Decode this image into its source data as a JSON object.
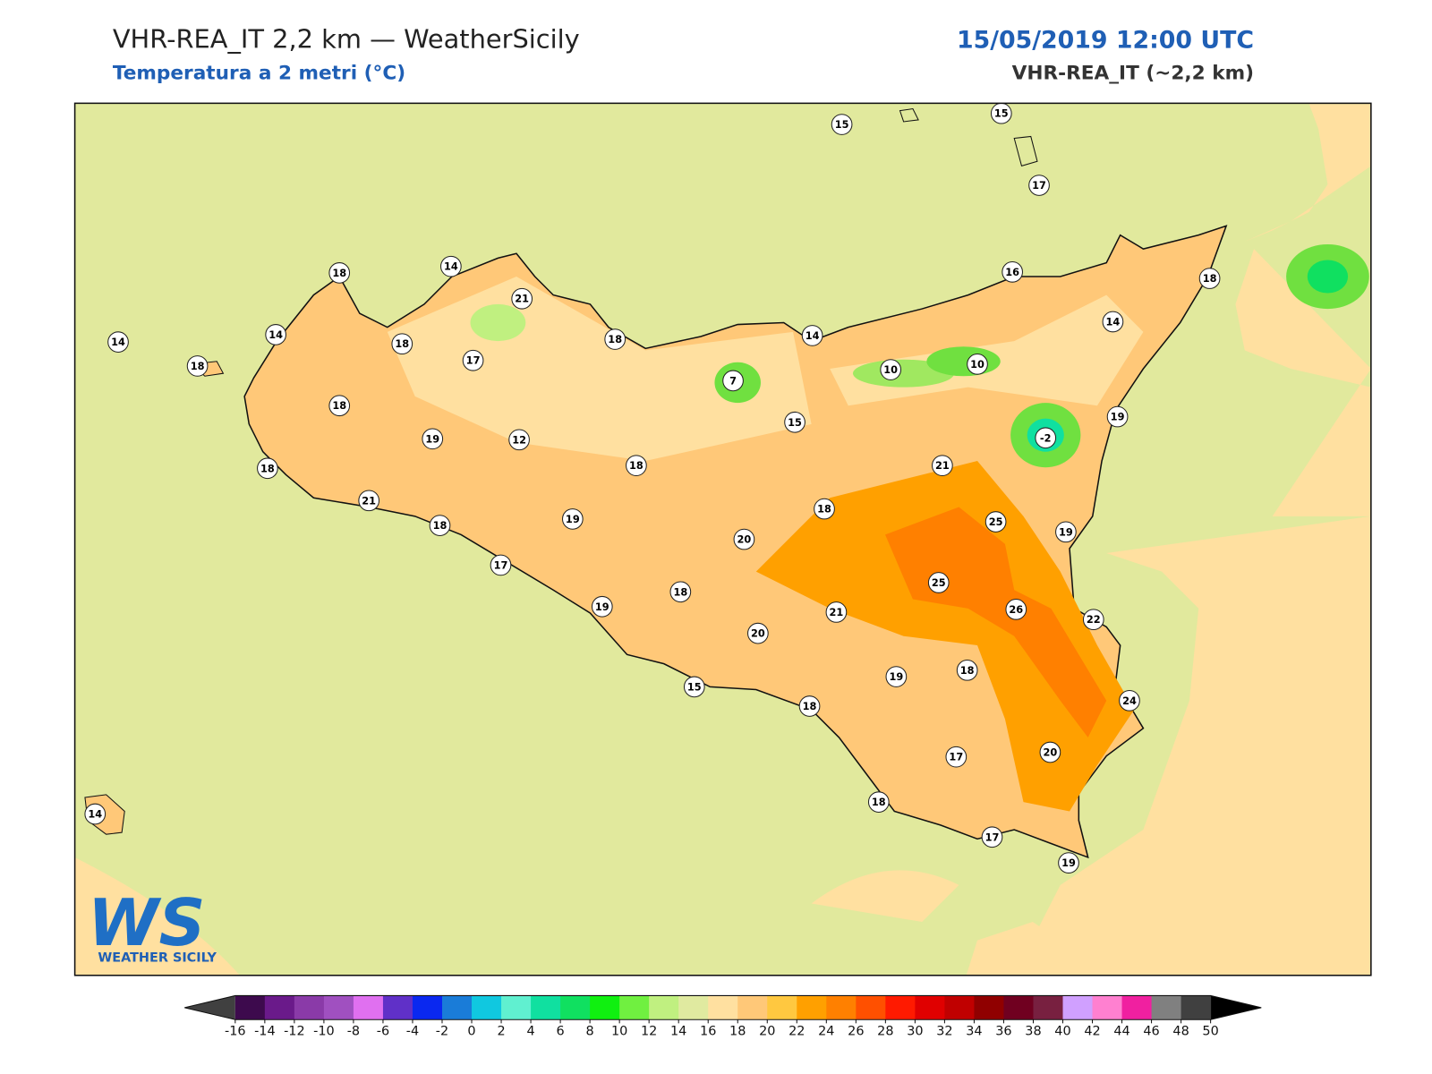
{
  "header": {
    "title": "VHR-REA_IT 2,2 km — WeatherSicily",
    "subtitle": "Temperatura a 2 metri (°C)",
    "datetime": "15/05/2019 12:00 UTC",
    "model": "VHR-REA_IT (~2,2 km)"
  },
  "stations": [
    15,
    15,
    17,
    18,
    14,
    21,
    18,
    16,
    14,
    14,
    14,
    18,
    18,
    17,
    18,
    14,
    7,
    10,
    10,
    18,
    15,
    19,
    -2,
    19,
    12,
    18,
    18,
    21,
    21,
    18,
    19,
    25,
    18,
    20,
    19,
    17,
    25,
    18,
    19,
    26,
    21,
    22,
    20,
    19,
    18,
    15,
    24,
    18,
    20,
    17,
    18,
    14,
    17,
    19
  ],
  "colorbar": {
    "ticks": [
      -16,
      -14,
      -12,
      -10,
      -8,
      -6,
      -4,
      -2,
      0,
      2,
      4,
      6,
      8,
      10,
      12,
      14,
      16,
      18,
      20,
      22,
      24,
      26,
      28,
      30,
      32,
      34,
      36,
      38,
      40,
      42,
      44,
      46,
      48,
      50
    ],
    "colors": [
      "#3d0a4d",
      "#6a1a8a",
      "#8a3aa8",
      "#a050c0",
      "#e070f0",
      "#6030c8",
      "#0a28f0",
      "#1a7cd8",
      "#10c8e0",
      "#60f0d0",
      "#10e0a0",
      "#10e060",
      "#10f010",
      "#70f040",
      "#c0f080",
      "#e0eaa0",
      "#ffe0a0",
      "#ffc878",
      "#ffc840",
      "#ffa000",
      "#ff8000",
      "#ff5000",
      "#ff1a00",
      "#e00000",
      "#c00000",
      "#900000",
      "#700020",
      "#782040",
      "#d0a0ff",
      "#ff80d0",
      "#f020a0",
      "#808080",
      "#404040"
    ],
    "under_color": "#404040",
    "over_color": "#000000"
  },
  "logo": {
    "mark": "WS",
    "text": "WEATHER SICILY"
  }
}
